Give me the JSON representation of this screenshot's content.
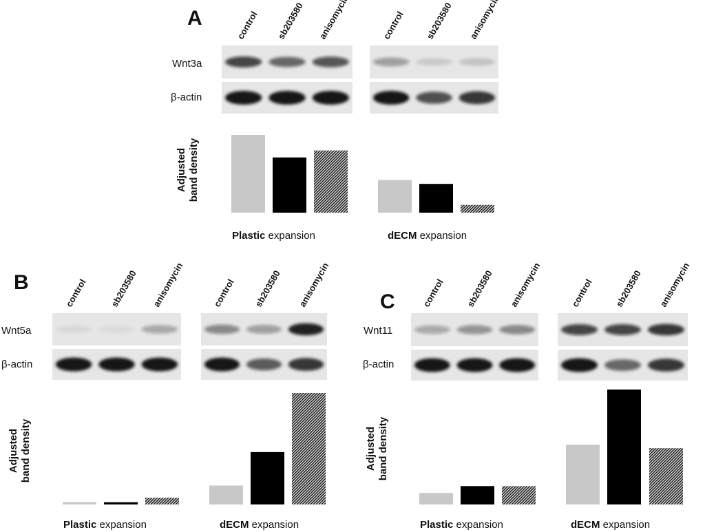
{
  "colors": {
    "control": "#c8c8c8",
    "sb203580": "#000000",
    "anisomycin_pattern": "dark-hatched",
    "blot_background": "#e6e6e6",
    "band": "#151515"
  },
  "lane_labels": [
    "control",
    "sb203580",
    "anisomycin"
  ],
  "group_labels": {
    "plastic": {
      "bold": "Plastic",
      "rest": " expansion"
    },
    "decm": {
      "bold": "dECM",
      "rest": " expansion"
    }
  },
  "ylabel_lines": [
    "Adjusted",
    "band density"
  ],
  "beta_actin_label": "β-actin",
  "panels": [
    {
      "id": "A",
      "target_label": "Wnt3a"
    },
    {
      "id": "B",
      "target_label": "Wnt5a"
    },
    {
      "id": "C",
      "target_label": "Wnt11"
    }
  ],
  "chart_data": [
    {
      "type": "bar",
      "panel": "A",
      "target": "Wnt3a",
      "groups": [
        "Plastic expansion",
        "dECM expansion"
      ],
      "series": [
        {
          "name": "control",
          "values": [
            1.0,
            0.42
          ]
        },
        {
          "name": "sb203580",
          "values": [
            0.71,
            0.37
          ]
        },
        {
          "name": "anisomycin",
          "values": [
            0.8,
            0.1
          ]
        }
      ],
      "ylabel": "Adjusted band density",
      "blots": {
        "target_band_intensity": [
          [
            0.75,
            0.6,
            0.68
          ],
          [
            0.35,
            0.12,
            0.15
          ]
        ],
        "actin_band_intensity": [
          [
            1.0,
            1.0,
            1.0
          ],
          [
            1.0,
            0.7,
            0.85
          ]
        ]
      }
    },
    {
      "type": "bar",
      "panel": "B",
      "target": "Wnt5a",
      "groups": [
        "Plastic expansion",
        "dECM expansion"
      ],
      "series": [
        {
          "name": "control",
          "values": [
            0.02,
            0.17
          ]
        },
        {
          "name": "sb203580",
          "values": [
            0.02,
            0.47
          ]
        },
        {
          "name": "anisomycin",
          "values": [
            0.06,
            1.0
          ]
        }
      ],
      "ylabel": "Adjusted band density",
      "blots": {
        "target_band_intensity": [
          [
            0.06,
            0.04,
            0.3
          ],
          [
            0.45,
            0.35,
            0.95
          ]
        ],
        "actin_band_intensity": [
          [
            1.0,
            1.0,
            1.0
          ],
          [
            1.0,
            0.65,
            0.85
          ]
        ]
      }
    },
    {
      "type": "bar",
      "panel": "C",
      "target": "Wnt11",
      "groups": [
        "Plastic expansion",
        "dECM expansion"
      ],
      "series": [
        {
          "name": "control",
          "values": [
            0.1,
            0.52
          ]
        },
        {
          "name": "sb203580",
          "values": [
            0.16,
            1.0
          ]
        },
        {
          "name": "anisomycin",
          "values": [
            0.16,
            0.49
          ]
        }
      ],
      "ylabel": "Adjusted band density",
      "blots": {
        "target_band_intensity": [
          [
            0.3,
            0.4,
            0.45
          ],
          [
            0.75,
            0.75,
            0.85
          ]
        ],
        "actin_band_intensity": [
          [
            1.0,
            1.0,
            1.0
          ],
          [
            1.0,
            0.6,
            0.85
          ]
        ]
      }
    }
  ]
}
